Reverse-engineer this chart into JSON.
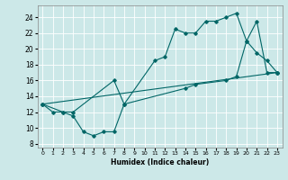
{
  "title": "",
  "xlabel": "Humidex (Indice chaleur)",
  "bg_color": "#cce8e8",
  "line_color": "#006666",
  "grid_color": "#ffffff",
  "xlim": [
    -0.5,
    23.5
  ],
  "ylim": [
    7.5,
    25.5
  ],
  "xticks": [
    0,
    1,
    2,
    3,
    4,
    5,
    6,
    7,
    8,
    9,
    10,
    11,
    12,
    13,
    14,
    15,
    16,
    17,
    18,
    19,
    20,
    21,
    22,
    23
  ],
  "yticks": [
    8,
    10,
    12,
    14,
    16,
    18,
    20,
    22,
    24
  ],
  "series": [
    {
      "x": [
        0,
        1,
        2,
        3,
        4,
        5,
        6,
        7,
        8,
        11,
        12,
        13,
        14,
        15,
        16,
        17,
        18,
        19,
        20,
        21,
        22,
        23
      ],
      "y": [
        13,
        12,
        12,
        11.5,
        9.5,
        9,
        9.5,
        9.5,
        13,
        18.5,
        19,
        22.5,
        22,
        22,
        23.5,
        23.5,
        24,
        24.5,
        21,
        19.5,
        18.5,
        17
      ]
    },
    {
      "x": [
        0,
        2,
        3,
        7,
        8,
        14,
        15,
        18,
        19,
        20,
        21,
        22,
        23
      ],
      "y": [
        13,
        12,
        12,
        16,
        13,
        15,
        15.5,
        16,
        16.5,
        21,
        23.5,
        17,
        17
      ]
    },
    {
      "x": [
        0,
        23
      ],
      "y": [
        13,
        17
      ]
    }
  ]
}
